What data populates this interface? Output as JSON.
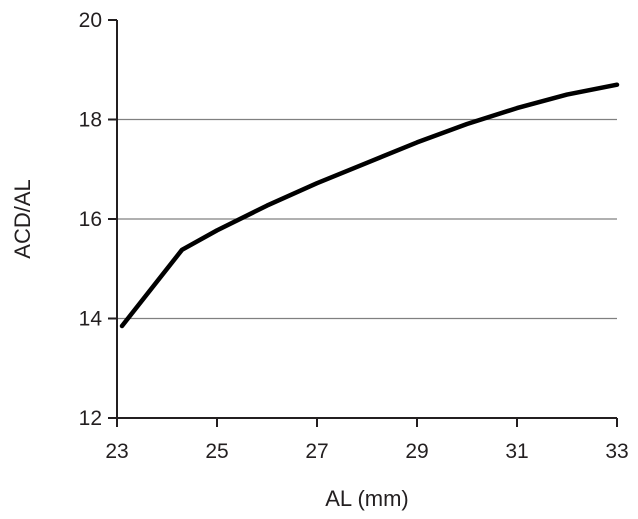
{
  "chart_data": {
    "type": "line",
    "title": "",
    "xlabel": "AL (mm)",
    "ylabel": "ACD/AL",
    "xlim": [
      23,
      33
    ],
    "ylim": [
      12,
      20
    ],
    "xticks": [
      23,
      25,
      27,
      29,
      31,
      33
    ],
    "yticks": [
      12,
      14,
      16,
      18,
      20
    ],
    "gridlines_y": [
      14,
      16,
      18
    ],
    "grid": "horizontal",
    "legend": "none",
    "colors": {
      "line": "#000000",
      "axis": "#231f20",
      "grid": "#808080"
    },
    "series": [
      {
        "x": [
          23.1,
          24.3,
          25,
          26,
          27,
          28,
          29,
          30,
          31,
          32,
          33
        ],
        "y": [
          13.85,
          15.38,
          15.77,
          16.27,
          16.72,
          17.13,
          17.54,
          17.91,
          18.23,
          18.5,
          18.7
        ]
      }
    ]
  }
}
